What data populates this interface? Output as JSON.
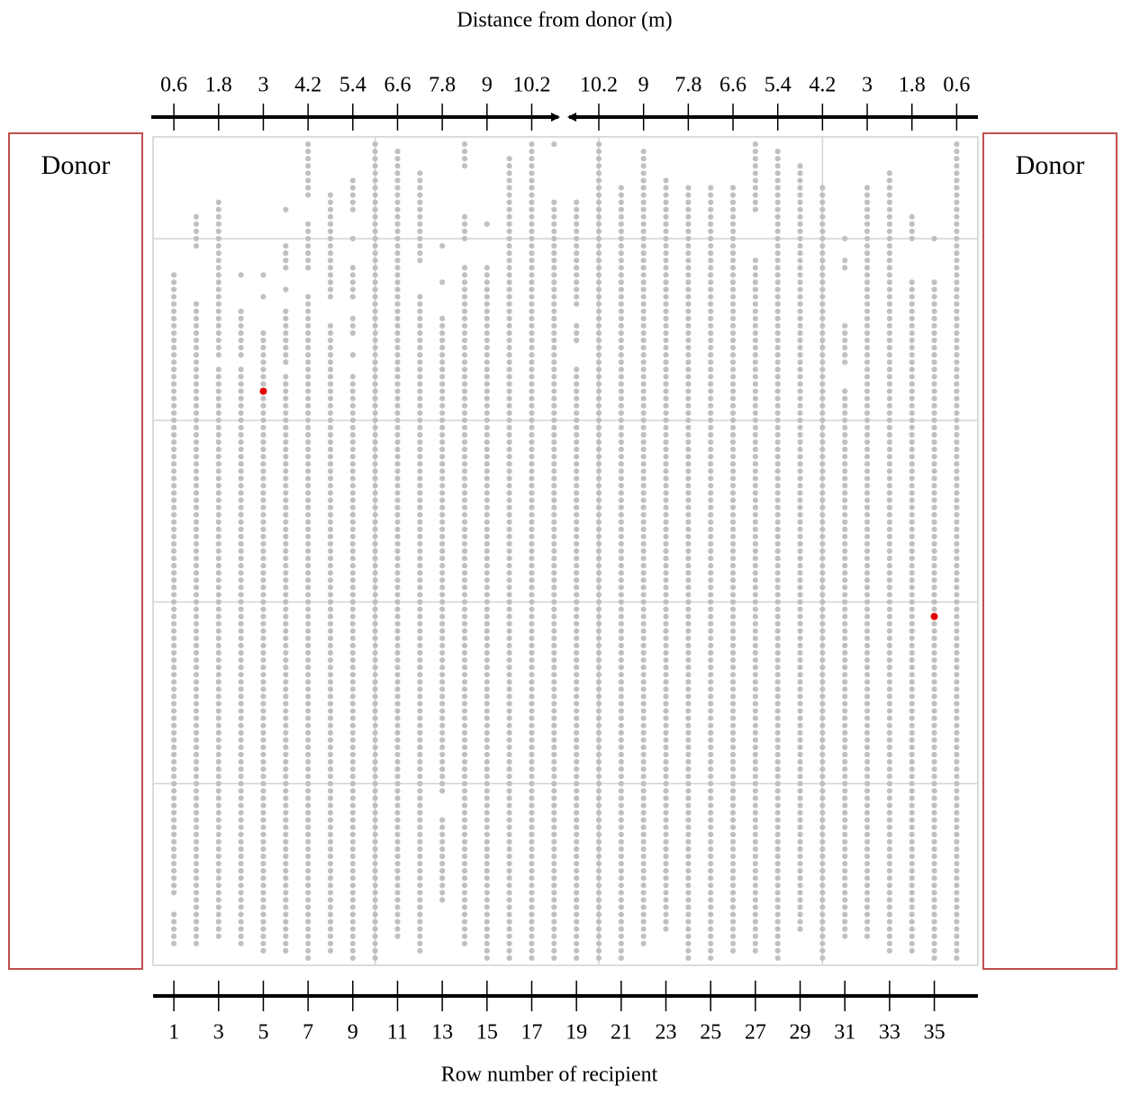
{
  "donors": [
    "Donor",
    "Donor"
  ],
  "chart_data": {
    "type": "dot",
    "title": "Distance from donor (m)",
    "xlabel": "Row number of recipient",
    "xlim": [
      0.07,
      36.95
    ],
    "ylim": [
      0,
      114
    ],
    "xticks": [
      1,
      3,
      5,
      7,
      9,
      11,
      13,
      15,
      17,
      19,
      21,
      23,
      25,
      27,
      29,
      31,
      33,
      35
    ],
    "xticks_top": [
      {
        "value": 1,
        "label": "0.6"
      },
      {
        "value": 3,
        "label": "1.8"
      },
      {
        "value": 5,
        "label": "3"
      },
      {
        "value": 7,
        "label": "4.2"
      },
      {
        "value": 9,
        "label": "5.4"
      },
      {
        "value": 11,
        "label": "6.6"
      },
      {
        "value": 13,
        "label": "7.8"
      },
      {
        "value": 15,
        "label": "9"
      },
      {
        "value": 17,
        "label": "10.2"
      },
      {
        "value": 20,
        "label": "10.2"
      },
      {
        "value": 22,
        "label": "9"
      },
      {
        "value": 24,
        "label": "7.8"
      },
      {
        "value": 26,
        "label": "6.6"
      },
      {
        "value": 28,
        "label": "5.4"
      },
      {
        "value": 30,
        "label": "4.2"
      },
      {
        "value": 32,
        "label": "3"
      },
      {
        "value": 34,
        "label": "1.8"
      },
      {
        "value": 36,
        "label": "0.6"
      }
    ],
    "grid_x": [
      10,
      20,
      30
    ],
    "grid_y": [
      25,
      50,
      75,
      100
    ],
    "dot_color": "#c0c0c0",
    "columns": [
      {
        "x": 1,
        "runs": [
          [
            3,
            7
          ],
          [
            10,
            95
          ]
        ]
      },
      {
        "x": 2,
        "runs": [
          [
            99,
            103
          ],
          [
            3,
            91
          ]
        ]
      },
      {
        "x": 3,
        "runs": [
          [
            84,
            105
          ],
          [
            4,
            82
          ]
        ]
      },
      {
        "x": 4,
        "runs": [
          [
            95,
            95
          ],
          [
            84,
            90
          ],
          [
            3,
            82
          ]
        ]
      },
      {
        "x": 5,
        "runs": [
          [
            95,
            95
          ],
          [
            92,
            92
          ],
          [
            2,
            87
          ]
        ]
      },
      {
        "x": 6,
        "runs": [
          [
            104,
            104
          ],
          [
            96,
            99
          ],
          [
            93,
            93
          ],
          [
            83,
            90
          ],
          [
            2,
            81
          ]
        ]
      },
      {
        "x": 7,
        "runs": [
          [
            106,
            113
          ],
          [
            96,
            102
          ],
          [
            1,
            92
          ]
        ]
      },
      {
        "x": 8,
        "runs": [
          [
            92,
            106
          ],
          [
            2,
            88
          ]
        ]
      },
      {
        "x": 9,
        "runs": [
          [
            104,
            108
          ],
          [
            100,
            100
          ],
          [
            92,
            96
          ],
          [
            87,
            89
          ],
          [
            84,
            84
          ],
          [
            1,
            81
          ]
        ]
      },
      {
        "x": 10,
        "runs": [
          [
            1,
            113
          ]
        ]
      },
      {
        "x": 11,
        "runs": [
          [
            4,
            112
          ]
        ]
      },
      {
        "x": 12,
        "runs": [
          [
            97,
            109
          ],
          [
            2,
            92
          ]
        ]
      },
      {
        "x": 13,
        "runs": [
          [
            99,
            99
          ],
          [
            94,
            94
          ],
          [
            24,
            89
          ],
          [
            9,
            20
          ]
        ]
      },
      {
        "x": 14,
        "runs": [
          [
            110,
            113
          ],
          [
            100,
            103
          ],
          [
            3,
            96
          ]
        ]
      },
      {
        "x": 15,
        "runs": [
          [
            102,
            102
          ],
          [
            1,
            96
          ]
        ]
      },
      {
        "x": 16,
        "runs": [
          [
            1,
            111
          ]
        ]
      },
      {
        "x": 17,
        "runs": [
          [
            1,
            113
          ]
        ]
      },
      {
        "x": 18,
        "runs": [
          [
            113,
            113
          ],
          [
            1,
            105
          ]
        ]
      },
      {
        "x": 19,
        "runs": [
          [
            91,
            105
          ],
          [
            86,
            88
          ],
          [
            1,
            82
          ]
        ]
      },
      {
        "x": 20,
        "runs": [
          [
            1,
            113
          ]
        ]
      },
      {
        "x": 21,
        "runs": [
          [
            1,
            107
          ]
        ]
      },
      {
        "x": 22,
        "runs": [
          [
            3,
            112
          ]
        ]
      },
      {
        "x": 23,
        "runs": [
          [
            5,
            108
          ]
        ]
      },
      {
        "x": 24,
        "runs": [
          [
            1,
            107
          ]
        ]
      },
      {
        "x": 25,
        "runs": [
          [
            1,
            107
          ]
        ]
      },
      {
        "x": 26,
        "runs": [
          [
            2,
            107
          ]
        ]
      },
      {
        "x": 27,
        "runs": [
          [
            104,
            113
          ],
          [
            2,
            97
          ]
        ]
      },
      {
        "x": 28,
        "runs": [
          [
            1,
            112
          ]
        ]
      },
      {
        "x": 29,
        "runs": [
          [
            5,
            110
          ]
        ]
      },
      {
        "x": 30,
        "runs": [
          [
            1,
            107
          ]
        ]
      },
      {
        "x": 31,
        "runs": [
          [
            100,
            100
          ],
          [
            96,
            97
          ],
          [
            83,
            88
          ],
          [
            4,
            79
          ]
        ]
      },
      {
        "x": 32,
        "runs": [
          [
            4,
            107
          ]
        ]
      },
      {
        "x": 33,
        "runs": [
          [
            2,
            109
          ]
        ]
      },
      {
        "x": 34,
        "runs": [
          [
            100,
            103
          ],
          [
            2,
            94
          ]
        ]
      },
      {
        "x": 35,
        "runs": [
          [
            100,
            100
          ],
          [
            1,
            94
          ]
        ]
      },
      {
        "x": 36,
        "runs": [
          [
            1,
            113
          ]
        ]
      }
    ],
    "highlight": {
      "color": "#e00000",
      "x": [
        5,
        35
      ],
      "y": [
        79,
        48
      ]
    }
  }
}
